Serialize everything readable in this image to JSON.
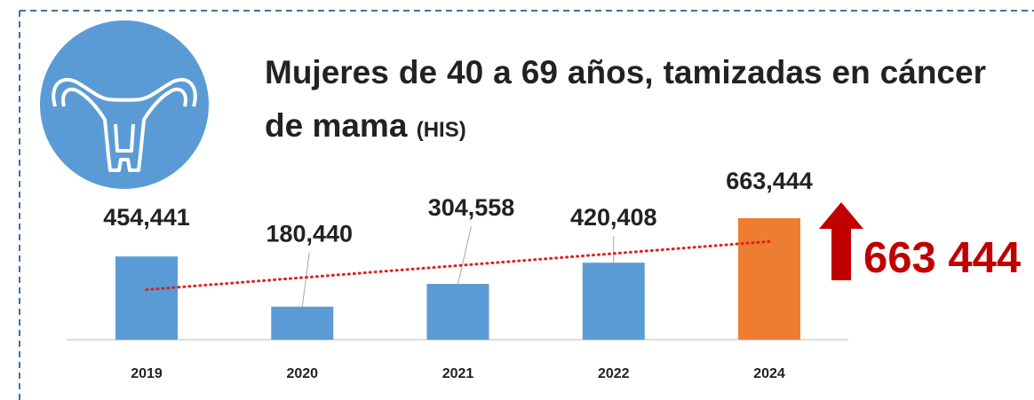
{
  "chart_data": {
    "type": "bar",
    "title": "Mujeres de 40 a 69 años, tamizadas en cáncer de mama",
    "title_note": "(HIS)",
    "categories": [
      "2019",
      "2020",
      "2021",
      "2022",
      "2024"
    ],
    "values": [
      454441,
      180440,
      304558,
      420408,
      663444
    ],
    "value_labels": [
      "454,441",
      "180,440",
      "304,558",
      "420,408",
      "663,444"
    ],
    "colors": [
      "#5b9bd5",
      "#5b9bd5",
      "#5b9bd5",
      "#5b9bd5",
      "#ed7d31"
    ],
    "trendline": {
      "type": "linear",
      "color": "#e02020"
    },
    "annotation": "663 444",
    "annotation_color": "#c00000"
  }
}
